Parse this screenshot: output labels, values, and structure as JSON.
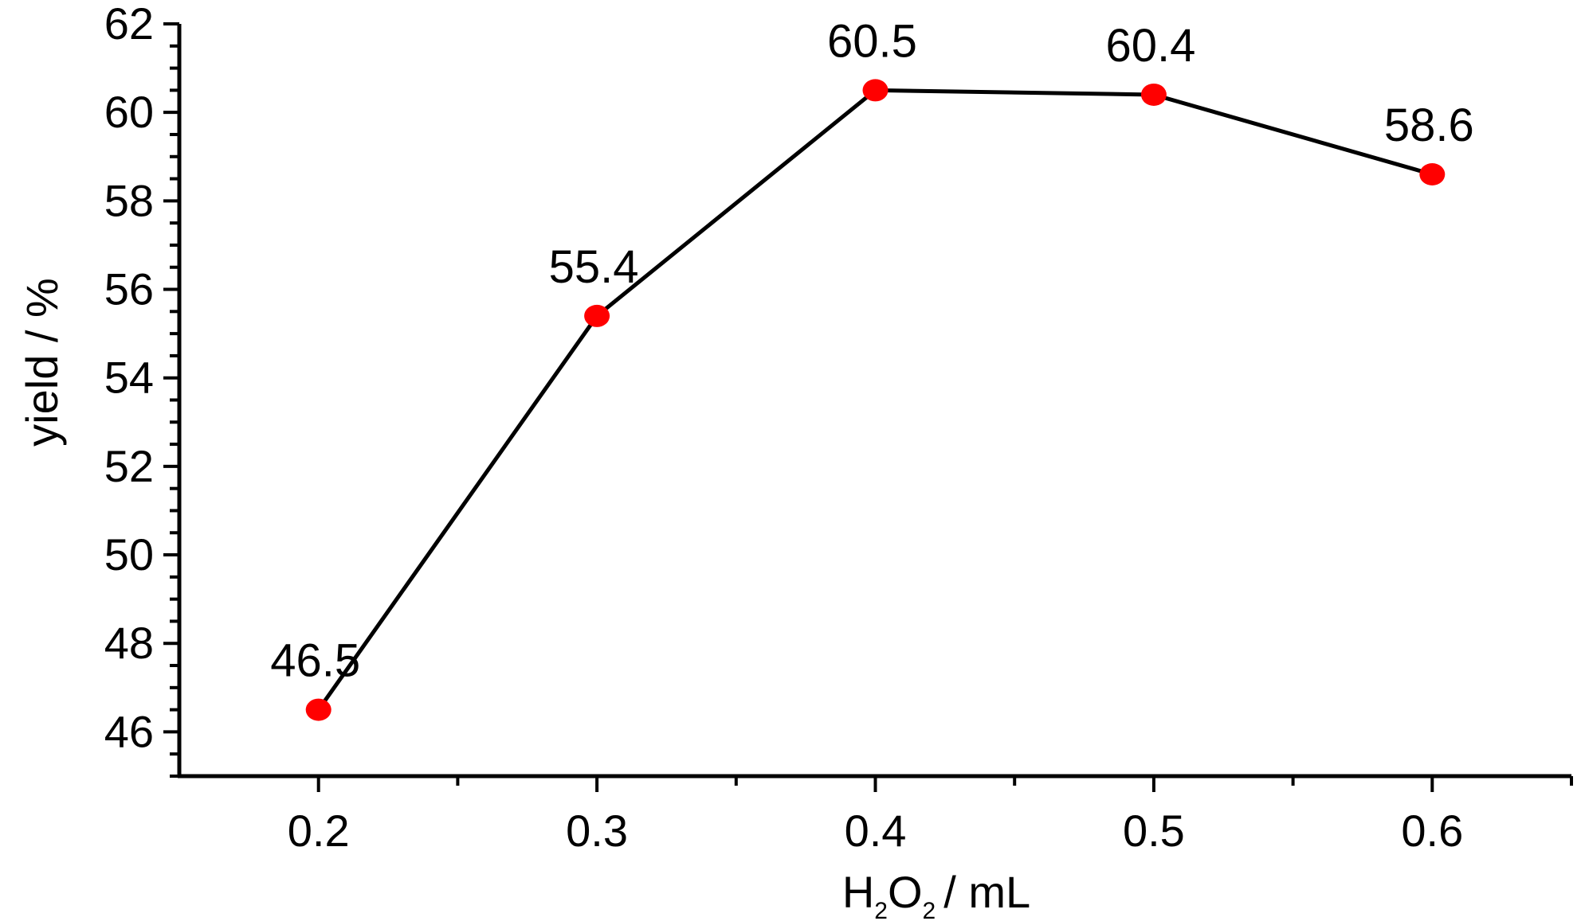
{
  "chart_data": {
    "type": "line",
    "title": "",
    "x": [
      0.2,
      0.3,
      0.4,
      0.5,
      0.6
    ],
    "series": [
      {
        "values": [
          46.5,
          55.4,
          60.5,
          60.4,
          58.6
        ],
        "data_labels": [
          "46.5",
          "55.4",
          "60.5",
          "60.4",
          "58.6"
        ],
        "line_color": "#000000",
        "marker_color": "#ff0000"
      }
    ],
    "xlabel": {
      "prefix": "H",
      "sub1": "2",
      "mid": "O",
      "sub2": "2",
      "suffix": "/ mL"
    },
    "ylabel": "yield / %",
    "xlim": [
      0.15,
      0.65
    ],
    "ylim": [
      45,
      62
    ],
    "x_ticks": [
      {
        "value": 0.2,
        "label": "0.2"
      },
      {
        "value": 0.3,
        "label": "0.3"
      },
      {
        "value": 0.4,
        "label": "0.4"
      },
      {
        "value": 0.5,
        "label": "0.5"
      },
      {
        "value": 0.6,
        "label": "0.6"
      }
    ],
    "x_minor_ticks": [
      0.25,
      0.35,
      0.45,
      0.55,
      0.65
    ],
    "y_ticks": [
      {
        "value": 46,
        "label": "46"
      },
      {
        "value": 48,
        "label": "48"
      },
      {
        "value": 50,
        "label": "50"
      },
      {
        "value": 52,
        "label": "52"
      },
      {
        "value": 54,
        "label": "54"
      },
      {
        "value": 56,
        "label": "56"
      },
      {
        "value": 58,
        "label": "58"
      },
      {
        "value": 60,
        "label": "60"
      },
      {
        "value": 62,
        "label": "62"
      }
    ],
    "y_minor_step": 0.5,
    "grid": false,
    "legend": "none"
  }
}
